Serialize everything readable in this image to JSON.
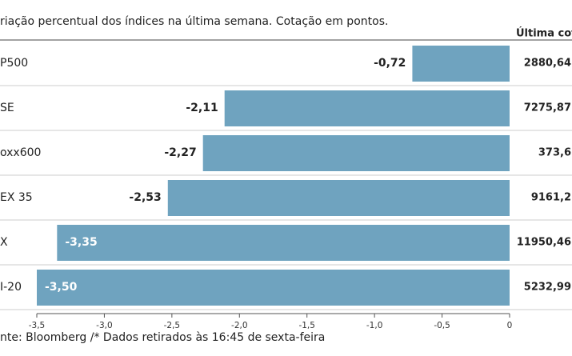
{
  "chart_data": {
    "type": "hbar",
    "title": "riação percentual dos índices na última semana. Cotação em pontos.",
    "quote_header": "Última cota",
    "source": "nte: Bloomberg /* Dados retirados às 16:45 de sexta-feira",
    "categories": [
      "P500",
      "SE",
      "oxx600",
      "EX 35",
      "X",
      "I-20"
    ],
    "values": [
      -0.72,
      -2.11,
      -2.27,
      -2.53,
      -3.35,
      -3.5
    ],
    "value_labels": [
      "-0,72",
      "-2,11",
      "-2,27",
      "-2,53",
      "-3,35",
      "-3,50"
    ],
    "last_quote": [
      "2880,64",
      "7275,87",
      "373,6",
      "9161,2",
      "11950,46",
      "5232,99"
    ],
    "color": "#6fa3bf",
    "xlim": [
      -3.5,
      0
    ],
    "xticks": [
      {
        "value": -3.5,
        "label": "-3,5"
      },
      {
        "value": -3.0,
        "label": "-3,0"
      },
      {
        "value": -2.5,
        "label": "-2,5"
      },
      {
        "value": -2.0,
        "label": "-2,0"
      },
      {
        "value": -1.5,
        "label": "-1,5"
      },
      {
        "value": -1.0,
        "label": "-1,0"
      },
      {
        "value": -0.5,
        "label": "-0,5"
      },
      0
    ]
  }
}
